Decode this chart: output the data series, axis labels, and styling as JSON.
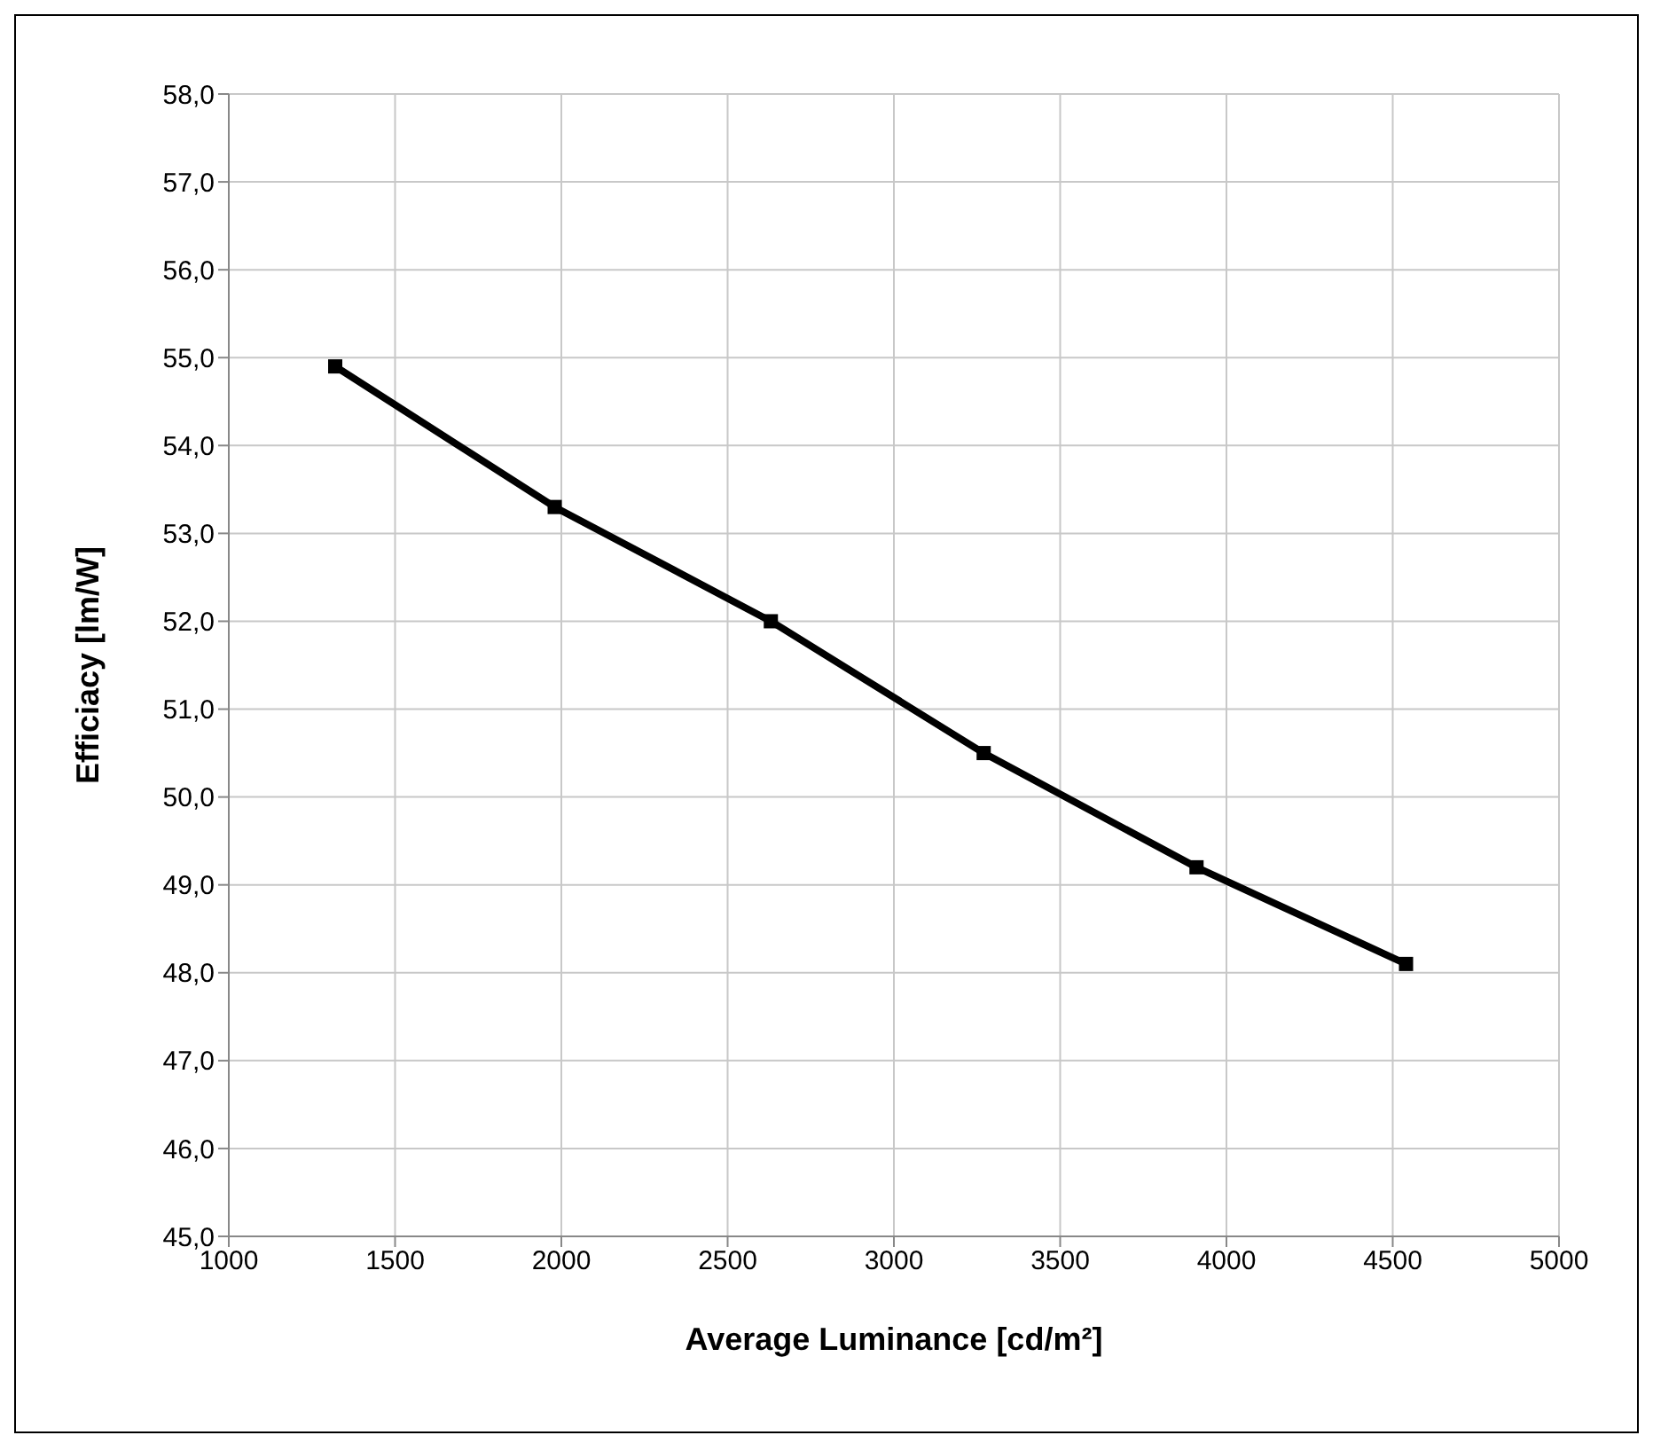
{
  "chart_data": {
    "type": "line",
    "xlabel": "Average Luminance [cd/m²]",
    "ylabel": "Efficiacy [lm/W]",
    "x": [
      1320,
      1980,
      2630,
      3270,
      3910,
      4540
    ],
    "series": [
      {
        "color": "#000000",
        "values": [
          54.9,
          53.3,
          52.0,
          50.5,
          49.2,
          48.1
        ]
      }
    ],
    "xlim": [
      1000,
      5000
    ],
    "xticks": [
      1000,
      1500,
      2000,
      2500,
      3000,
      3500,
      4000,
      4500,
      5000
    ],
    "ylim": [
      45,
      58
    ],
    "yticks": [
      {
        "value": 45,
        "label": "45,0"
      },
      {
        "value": 46,
        "label": "46,0"
      },
      {
        "value": 47,
        "label": "47,0"
      },
      {
        "value": 48,
        "label": "48,0"
      },
      {
        "value": 49,
        "label": "49,0"
      },
      {
        "value": 50,
        "label": "50,0"
      },
      {
        "value": 51,
        "label": "51,0"
      },
      {
        "value": 52,
        "label": "52,0"
      },
      {
        "value": 53,
        "label": "53,0"
      },
      {
        "value": 54,
        "label": "54,0"
      },
      {
        "value": 55,
        "label": "55,0"
      },
      {
        "value": 56,
        "label": "56,0"
      },
      {
        "value": 57,
        "label": "57,0"
      },
      {
        "value": 58,
        "label": "58,0"
      }
    ],
    "grid": true,
    "marker": "square",
    "line_style": "solid",
    "legend": false
  }
}
